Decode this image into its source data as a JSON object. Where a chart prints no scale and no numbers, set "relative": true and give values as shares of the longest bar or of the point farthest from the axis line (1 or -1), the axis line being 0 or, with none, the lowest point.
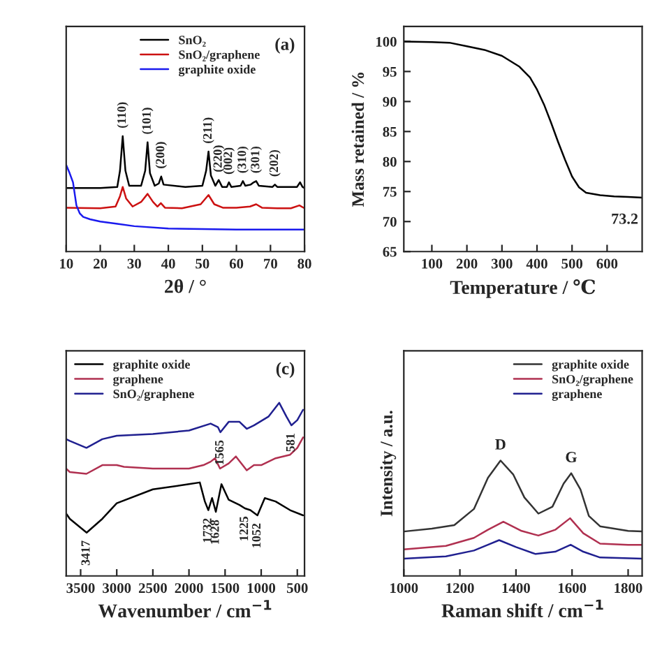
{
  "chart_data": [
    {
      "type": "line",
      "relative": true,
      "tick_labels": "x",
      "xlabel": "2θ / °",
      "xlim": [
        10,
        80
      ],
      "xticks": [
        10,
        20,
        30,
        40,
        50,
        60,
        70,
        80
      ],
      "legend": "top right",
      "series": [
        {
          "name": "SnO₂",
          "color": "#000000",
          "x": [
            10,
            20,
            25,
            25.8,
            26.6,
            27.4,
            28.5,
            32,
            33.2,
            33.9,
            34.6,
            36,
            37.2,
            37.9,
            38.6,
            45,
            50,
            51.1,
            51.8,
            52.5,
            53.8,
            54.8,
            55.8,
            57.2,
            57.8,
            58.5,
            61.2,
            61.9,
            62.6,
            64.2,
            65.1,
            65.8,
            66.6,
            70.6,
            71.3,
            72,
            77.8,
            78.7,
            79.4,
            80
          ],
          "values": [
            0.55,
            0.55,
            0.56,
            0.7,
            1.0,
            0.7,
            0.57,
            0.57,
            0.7,
            0.947,
            0.68,
            0.57,
            0.59,
            0.65,
            0.58,
            0.56,
            0.57,
            0.7,
            0.867,
            0.66,
            0.57,
            0.62,
            0.56,
            0.56,
            0.6,
            0.56,
            0.57,
            0.61,
            0.57,
            0.58,
            0.6,
            0.61,
            0.57,
            0.56,
            0.58,
            0.56,
            0.56,
            0.6,
            0.56,
            0.55
          ]
        },
        {
          "name": "SnO₂/graphene",
          "color": "#cc1111",
          "x": [
            10,
            20,
            24.5,
            25.8,
            26.6,
            27.6,
            29.5,
            32,
            33.9,
            35.5,
            36.8,
            37.8,
            39,
            44,
            49.5,
            51.8,
            53.5,
            56,
            60,
            64,
            65.8,
            67.5,
            72,
            76,
            78.5,
            80
          ],
          "values": [
            0.38,
            0.375,
            0.39,
            0.48,
            0.56,
            0.46,
            0.39,
            0.43,
            0.5,
            0.43,
            0.39,
            0.42,
            0.38,
            0.375,
            0.41,
            0.49,
            0.41,
            0.38,
            0.38,
            0.39,
            0.41,
            0.38,
            0.375,
            0.375,
            0.4,
            0.375
          ]
        },
        {
          "name": "graphite oxide",
          "color": "#1a1aee",
          "x": [
            10,
            11,
            12,
            13,
            14,
            15,
            17,
            20,
            25,
            30,
            40,
            50,
            60,
            70,
            80
          ],
          "values": [
            0.75,
            0.68,
            0.6,
            0.4,
            0.33,
            0.3,
            0.28,
            0.26,
            0.24,
            0.22,
            0.2,
            0.195,
            0.19,
            0.19,
            0.19
          ]
        }
      ],
      "annotations": [
        "(a)",
        {
          "text": "(110)",
          "x": 26.6,
          "y": 1.0
        },
        {
          "text": "(101)",
          "x": 33.9,
          "y": 0.947
        },
        {
          "text": "(200)",
          "x": 37.9,
          "y": 0.65
        },
        {
          "text": "(211)",
          "x": 51.8,
          "y": 0.867
        },
        {
          "text": "(220)",
          "x": 54.8,
          "y": 0.62
        },
        {
          "text": "(002)",
          "x": 57.8,
          "y": 0.6
        },
        {
          "text": "(310)",
          "x": 61.9,
          "y": 0.61
        },
        {
          "text": "(301)",
          "x": 65.8,
          "y": 0.61
        },
        {
          "text": "(202)",
          "x": 71.3,
          "y": 0.58
        }
      ]
    },
    {
      "type": "line",
      "xlabel": "Temperature / ℃",
      "ylabel": "Mass retained / %",
      "xlim": [
        20,
        700
      ],
      "xticks": [
        100,
        200,
        300,
        400,
        500,
        600
      ],
      "ylim": [
        65,
        102.5
      ],
      "yticks": [
        65,
        70,
        75,
        80,
        85,
        90,
        95,
        100
      ],
      "series": [
        {
          "color": "#000000",
          "x": [
            20,
            100,
            150,
            200,
            250,
            300,
            350,
            380,
            400,
            420,
            440,
            460,
            480,
            500,
            520,
            540,
            580,
            620,
            660,
            700
          ],
          "values": [
            100,
            99.9,
            99.8,
            99.2,
            98.6,
            97.6,
            95.8,
            94,
            92,
            89.5,
            86.5,
            83.3,
            80.3,
            77.5,
            75.7,
            74.8,
            74.4,
            74.2,
            74.1,
            74.0
          ]
        }
      ],
      "annotations": [
        {
          "text": "73.2",
          "x": 700,
          "y": 74.0
        }
      ]
    },
    {
      "type": "line",
      "relative": true,
      "tick_labels": "x",
      "xlabel": "Wavenumber / cm$^{−1}$",
      "xlim": [
        3700,
        400
      ],
      "xticks": [
        3500,
        3000,
        2500,
        2000,
        1500,
        1000,
        500
      ],
      "legend": "top left",
      "series": [
        {
          "name": "graphite oxide",
          "color": "#000000",
          "x": [
            3700,
            3650,
            3417,
            3200,
            3000,
            2500,
            2000,
            1850,
            1780,
            1732,
            1680,
            1628,
            1550,
            1450,
            1300,
            1225,
            1150,
            1052,
            950,
            800,
            600,
            420
          ],
          "values": [
            0.36,
            0.33,
            0.25,
            0.33,
            0.42,
            0.5,
            0.53,
            0.54,
            0.43,
            0.38,
            0.45,
            0.37,
            0.53,
            0.44,
            0.41,
            0.39,
            0.38,
            0.35,
            0.45,
            0.43,
            0.38,
            0.35
          ]
        },
        {
          "name": "graphene",
          "color": "#b03050",
          "x": [
            3700,
            3650,
            3420,
            3200,
            3000,
            2900,
            2500,
            2000,
            1800,
            1700,
            1640,
            1570,
            1450,
            1350,
            1200,
            1100,
            1000,
            800,
            600,
            500,
            420
          ],
          "values": [
            0.62,
            0.6,
            0.59,
            0.64,
            0.64,
            0.63,
            0.62,
            0.62,
            0.64,
            0.66,
            0.68,
            0.62,
            0.65,
            0.69,
            0.61,
            0.64,
            0.64,
            0.68,
            0.7,
            0.74,
            0.8
          ]
        },
        {
          "name": "SnO₂/graphene",
          "color": "#202090",
          "x": [
            3700,
            3650,
            3420,
            3200,
            3000,
            2500,
            2000,
            1700,
            1600,
            1565,
            1450,
            1300,
            1200,
            1100,
            900,
            750,
            650,
            581,
            500,
            420
          ],
          "values": [
            0.79,
            0.78,
            0.74,
            0.79,
            0.81,
            0.82,
            0.84,
            0.88,
            0.86,
            0.83,
            0.89,
            0.89,
            0.85,
            0.87,
            0.92,
            1.0,
            0.92,
            0.87,
            0.9,
            0.96
          ]
        }
      ],
      "annotations": [
        "(c)",
        {
          "text": "3417",
          "x": 3417,
          "y": 0.25
        },
        {
          "text": "1732",
          "x": 1732,
          "y": 0.38
        },
        {
          "text": "1628",
          "x": 1628,
          "y": 0.37
        },
        {
          "text": "1225",
          "x": 1225,
          "y": 0.39
        },
        {
          "text": "1052",
          "x": 1052,
          "y": 0.35
        },
        {
          "text": "1565",
          "x": 1565,
          "y": 0.83
        },
        {
          "text": "581",
          "x": 581,
          "y": 0.87
        }
      ]
    },
    {
      "type": "line",
      "relative": true,
      "tick_labels": "x",
      "xlabel": "Raman shift / cm$^{−1}$",
      "ylabel": "Intensity / a.u.",
      "xlim": [
        1000,
        1850
      ],
      "xticks": [
        1000,
        1200,
        1400,
        1600,
        1800
      ],
      "legend": "top right",
      "series": [
        {
          "name": "graphite oxide",
          "color": "#333333",
          "x": [
            1000,
            1100,
            1180,
            1250,
            1300,
            1345,
            1390,
            1430,
            1480,
            1530,
            1570,
            1597,
            1630,
            1660,
            1700,
            1800,
            1850
          ],
          "values": [
            0.385,
            0.41,
            0.44,
            0.58,
            0.85,
            1.0,
            0.88,
            0.68,
            0.54,
            0.6,
            0.8,
            0.89,
            0.75,
            0.52,
            0.43,
            0.39,
            0.385
          ]
        },
        {
          "name": "SnO₂/graphene",
          "color": "#b03050",
          "x": [
            1000,
            1150,
            1250,
            1300,
            1355,
            1420,
            1480,
            1540,
            1593,
            1640,
            1700,
            1800,
            1850
          ],
          "values": [
            0.23,
            0.26,
            0.33,
            0.4,
            0.47,
            0.39,
            0.35,
            0.4,
            0.5,
            0.37,
            0.28,
            0.27,
            0.27
          ]
        },
        {
          "name": "graphene",
          "color": "#202090",
          "x": [
            1000,
            1150,
            1250,
            1300,
            1340,
            1400,
            1470,
            1540,
            1595,
            1640,
            1700,
            1850
          ],
          "values": [
            0.15,
            0.17,
            0.22,
            0.27,
            0.31,
            0.25,
            0.19,
            0.21,
            0.27,
            0.21,
            0.16,
            0.15
          ]
        }
      ],
      "annotations": [
        {
          "text": "D",
          "x": 1345,
          "y": 1.0
        },
        {
          "text": "G",
          "x": 1597,
          "y": 0.89
        }
      ]
    }
  ]
}
